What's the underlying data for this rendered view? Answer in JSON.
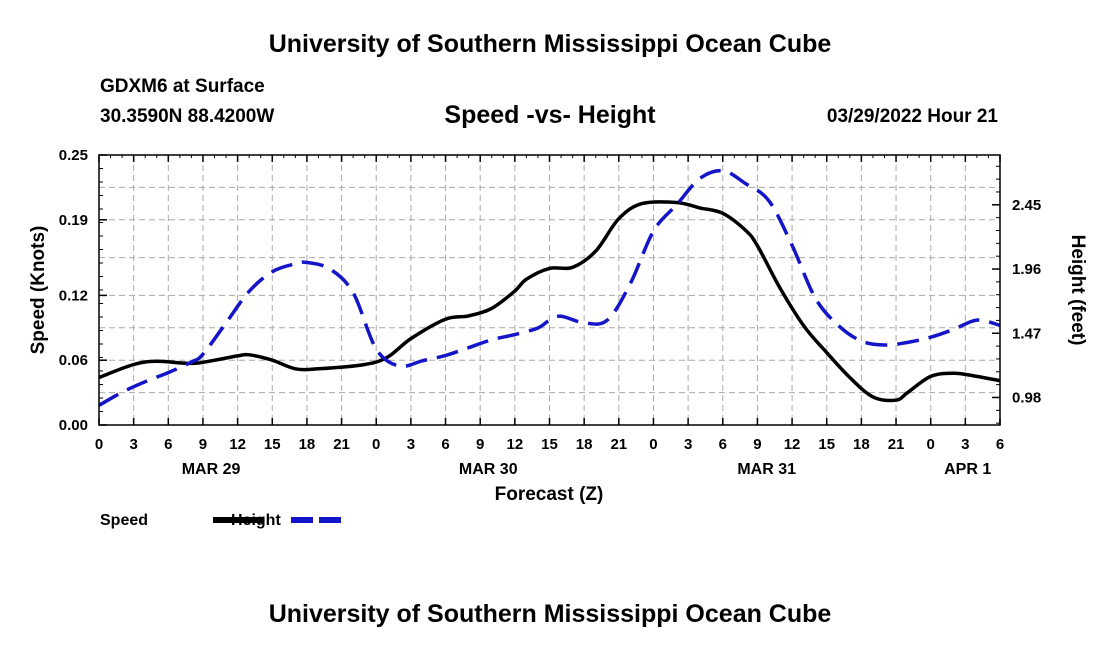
{
  "title": "University of Southern Mississippi Ocean Cube",
  "footer_title": "University of Southern Mississippi Ocean Cube",
  "station": "GDXM6 at Surface",
  "location": "30.3590N  88.4200W",
  "datetime": "03/29/2022 Hour 21",
  "colors": {
    "speed": "#000000",
    "height": "#1414c8",
    "grid": "#aaaaaa"
  },
  "chart_data": {
    "type": "line",
    "title": "Speed -vs- Height",
    "xlabel": "Forecast (Z)",
    "ylabel_left": "Speed (Knots)",
    "ylabel_right": "Height (feet)",
    "x_range_hours": [
      0,
      78
    ],
    "x_tick_hours": [
      0,
      3,
      6,
      9,
      12,
      15,
      18,
      21,
      24,
      27,
      30,
      33,
      36,
      39,
      42,
      45,
      48,
      51,
      54,
      57,
      60,
      63,
      66,
      69,
      72,
      75,
      78
    ],
    "x_tick_labels": [
      "0",
      "3",
      "6",
      "9",
      "12",
      "15",
      "18",
      "21",
      "0",
      "3",
      "6",
      "9",
      "12",
      "15",
      "18",
      "21",
      "0",
      "3",
      "6",
      "9",
      "12",
      "15",
      "18",
      "21",
      "0",
      "3",
      "6"
    ],
    "date_labels": [
      {
        "label": "MAR 29",
        "hour": 9.7
      },
      {
        "label": "MAR 30",
        "hour": 33.7
      },
      {
        "label": "MAR 31",
        "hour": 57.8
      },
      {
        "label": "APR 1",
        "hour": 75.2
      }
    ],
    "y_left_range": [
      0,
      0.25
    ],
    "y_left_ticks": [
      0.0,
      0.06,
      0.12,
      0.19,
      0.25
    ],
    "y_left_tick_labels": [
      "0.00",
      "0.06",
      "0.12",
      "0.19",
      "0.25"
    ],
    "y_right_range": [
      0.77,
      2.83
    ],
    "y_right_ticks": [
      0.98,
      1.47,
      1.96,
      2.45
    ],
    "y_right_tick_labels": [
      "0.98",
      "1.47",
      "1.96",
      "2.45"
    ],
    "series": [
      {
        "name": "Speed",
        "axis": "left",
        "style": "solid",
        "x": [
          0,
          3,
          5,
          8,
          10,
          12,
          13,
          15,
          17,
          19,
          23,
          25,
          27,
          30,
          32,
          34,
          36,
          37,
          39,
          41,
          43,
          45,
          47,
          50,
          52,
          54,
          56,
          57,
          59,
          61,
          63,
          65,
          67,
          69,
          70,
          72,
          74,
          76,
          78
        ],
        "values": [
          0.044,
          0.056,
          0.059,
          0.057,
          0.06,
          0.064,
          0.065,
          0.06,
          0.052,
          0.052,
          0.056,
          0.063,
          0.08,
          0.098,
          0.101,
          0.108,
          0.124,
          0.135,
          0.145,
          0.146,
          0.161,
          0.191,
          0.205,
          0.206,
          0.201,
          0.196,
          0.18,
          0.166,
          0.126,
          0.092,
          0.067,
          0.044,
          0.026,
          0.023,
          0.03,
          0.045,
          0.048,
          0.045,
          0.041
        ]
      },
      {
        "name": "Height",
        "axis": "right",
        "style": "dashed",
        "x": [
          0,
          2,
          4,
          6,
          8,
          9,
          11,
          13,
          15,
          17,
          18,
          20,
          22,
          24,
          26,
          28,
          30,
          32,
          34,
          36,
          38,
          39,
          40,
          42,
          44,
          46,
          48,
          50,
          52,
          54,
          56,
          58,
          60,
          62,
          64,
          66,
          68,
          70,
          72,
          74,
          76,
          78
        ],
        "values": [
          0.92,
          1.02,
          1.1,
          1.17,
          1.25,
          1.31,
          1.55,
          1.79,
          1.94,
          2.0,
          2.01,
          1.96,
          1.78,
          1.35,
          1.22,
          1.26,
          1.3,
          1.36,
          1.42,
          1.46,
          1.51,
          1.57,
          1.6,
          1.55,
          1.57,
          1.85,
          2.25,
          2.45,
          2.65,
          2.71,
          2.61,
          2.48,
          2.14,
          1.74,
          1.53,
          1.41,
          1.38,
          1.4,
          1.44,
          1.5,
          1.57,
          1.53
        ]
      }
    ],
    "legend": [
      {
        "label": "Speed",
        "style": "solid"
      },
      {
        "label": "Height",
        "style": "dashed"
      }
    ]
  }
}
